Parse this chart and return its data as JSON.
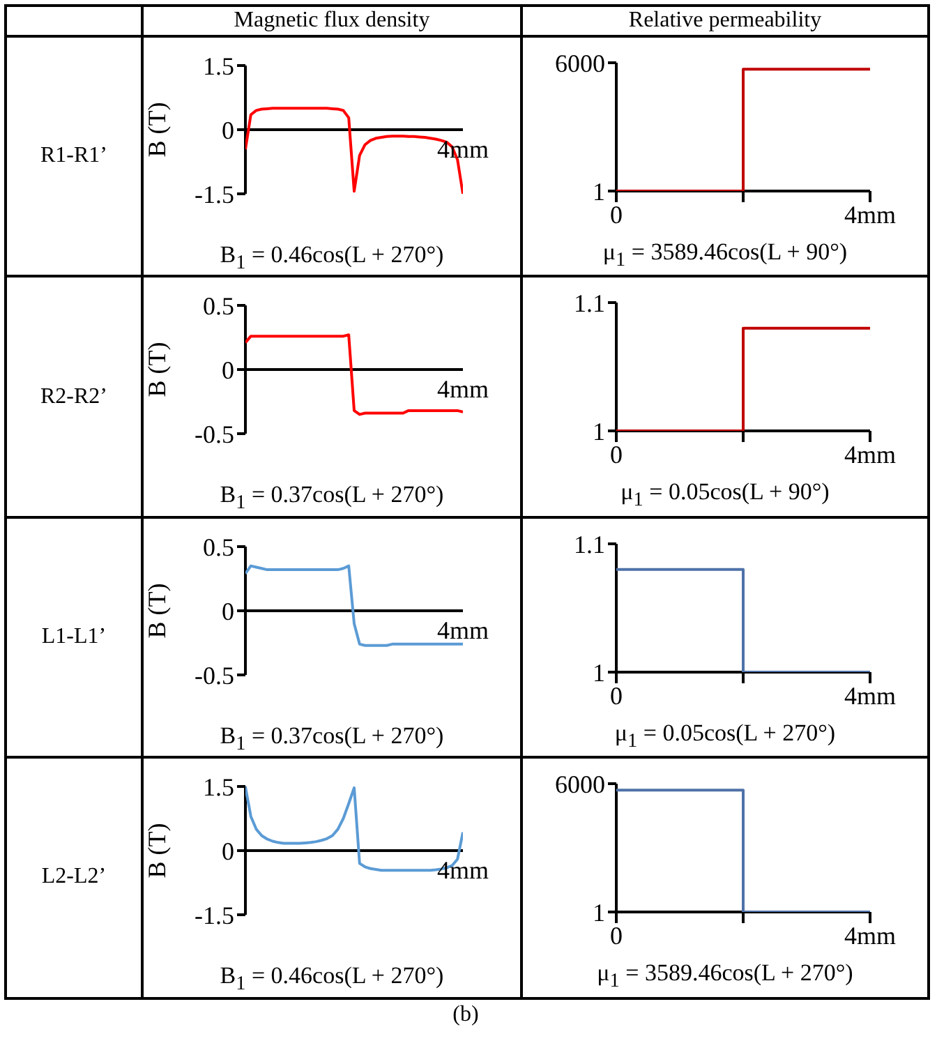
{
  "chart_data": [
    {
      "type": "line",
      "title": "Magnetic flux density",
      "annotations": [
        "R1-R1’",
        "4mm"
      ],
      "ylabel": "B (T)",
      "xlabel": "B$_{1}$ = 0.46cos(L + 270°)",
      "categories": [
        null,
        null,
        null,
        null,
        null,
        null,
        null,
        null,
        null,
        null,
        null,
        null,
        null,
        null,
        null,
        null,
        null,
        null,
        null,
        null,
        null,
        null,
        null,
        null,
        null,
        null,
        null,
        null,
        null,
        null,
        null,
        null,
        null,
        null,
        null,
        null,
        null,
        null,
        null,
        null,
        null
      ],
      "ylim": [
        -1.5,
        1.5
      ],
      "yticks": [
        -1.5,
        0,
        1.5
      ],
      "marker": "none",
      "line_style": "solid",
      "series": [
        {
          "color": "#ff0000",
          "values": [
            -0.46,
            0.35,
            0.45,
            0.48,
            0.49,
            0.5,
            0.5,
            0.5,
            0.5,
            0.5,
            0.5,
            0.5,
            0.5,
            0.5,
            0.5,
            0.5,
            0.49,
            0.48,
            0.45,
            0.28,
            -1.44,
            -0.6,
            -0.35,
            -0.25,
            -0.2,
            -0.18,
            -0.16,
            -0.15,
            -0.15,
            -0.15,
            -0.16,
            -0.16,
            -0.17,
            -0.18,
            -0.2,
            -0.22,
            -0.25,
            -0.29,
            -0.4,
            -0.7,
            -1.5
          ]
        }
      ]
    },
    {
      "type": "step",
      "title": "Relative permeability",
      "xlabel": "μ$_{1}$ = 3589.46cos(L + 90°)",
      "xlim": [
        0,
        4
      ],
      "xticks": [
        {
          "value": 0,
          "label": "0"
        },
        {
          "value": 2,
          "label": null
        },
        {
          "value": 4,
          "label": "4mm"
        }
      ],
      "ylim": [
        1,
        6000
      ],
      "yticks": [
        1,
        6000
      ],
      "marker": "none",
      "line_style": "solid",
      "series": [
        {
          "color": "#c00000",
          "x": [
            0,
            2,
            4
          ],
          "values": [
            1,
            5700,
            5700
          ]
        }
      ]
    },
    {
      "type": "line",
      "annotations": [
        "R2-R2’",
        "4mm"
      ],
      "ylabel": "B (T)",
      "xlabel": "B$_{1}$ = 0.37cos(L + 270°)",
      "categories": [
        null,
        null,
        null,
        null,
        null,
        null,
        null,
        null,
        null,
        null,
        null,
        null,
        null,
        null,
        null,
        null,
        null,
        null,
        null,
        null,
        null,
        null,
        null,
        null,
        null,
        null,
        null,
        null,
        null,
        null,
        null,
        null,
        null,
        null,
        null,
        null,
        null,
        null,
        null,
        null,
        null
      ],
      "ylim": [
        -0.5,
        0.5
      ],
      "yticks": [
        -0.5,
        0,
        0.5
      ],
      "marker": "none",
      "line_style": "solid",
      "series": [
        {
          "color": "#ff0000",
          "values": [
            0.21,
            0.26,
            0.26,
            0.26,
            0.26,
            0.26,
            0.26,
            0.26,
            0.26,
            0.26,
            0.26,
            0.26,
            0.26,
            0.26,
            0.26,
            0.26,
            0.26,
            0.26,
            0.26,
            0.27,
            -0.32,
            -0.35,
            -0.34,
            -0.34,
            -0.34,
            -0.34,
            -0.34,
            -0.34,
            -0.34,
            -0.34,
            -0.32,
            -0.32,
            -0.32,
            -0.32,
            -0.32,
            -0.32,
            -0.32,
            -0.32,
            -0.32,
            -0.32,
            -0.33
          ]
        }
      ]
    },
    {
      "type": "step",
      "xlabel": "μ$_{1}$ = 0.05cos(L + 90°)",
      "xlim": [
        0,
        4
      ],
      "xticks": [
        {
          "value": 0,
          "label": "0"
        },
        {
          "value": 2,
          "label": null
        },
        {
          "value": 4,
          "label": "4mm"
        }
      ],
      "ylim": [
        1,
        1.1
      ],
      "yticks": [
        1,
        1.1
      ],
      "marker": "none",
      "line_style": "solid",
      "series": [
        {
          "color": "#c00000",
          "x": [
            0,
            2,
            4
          ],
          "values": [
            1,
            1.08,
            1.08
          ]
        }
      ]
    },
    {
      "type": "line",
      "annotations": [
        "L1-L1’",
        "4mm"
      ],
      "ylabel": "B (T)",
      "xlabel": "B$_{1}$ = 0.37cos(L + 270°)",
      "categories": [
        null,
        null,
        null,
        null,
        null,
        null,
        null,
        null,
        null,
        null,
        null,
        null,
        null,
        null,
        null,
        null,
        null,
        null,
        null,
        null,
        null,
        null,
        null,
        null,
        null,
        null,
        null,
        null,
        null,
        null,
        null,
        null,
        null,
        null,
        null,
        null,
        null,
        null,
        null,
        null,
        null
      ],
      "ylim": [
        -0.5,
        0.5
      ],
      "yticks": [
        -0.5,
        0,
        0.5
      ],
      "marker": "none",
      "line_style": "solid",
      "series": [
        {
          "color": "#5b9bd5",
          "values": [
            0.29,
            0.35,
            0.34,
            0.33,
            0.32,
            0.32,
            0.32,
            0.32,
            0.32,
            0.32,
            0.32,
            0.32,
            0.32,
            0.32,
            0.32,
            0.32,
            0.32,
            0.32,
            0.33,
            0.35,
            -0.1,
            -0.26,
            -0.27,
            -0.27,
            -0.27,
            -0.27,
            -0.27,
            -0.26,
            -0.26,
            -0.26,
            -0.26,
            -0.26,
            -0.26,
            -0.26,
            -0.26,
            -0.26,
            -0.26,
            -0.26,
            -0.26,
            -0.26,
            -0.26
          ]
        }
      ]
    },
    {
      "type": "step",
      "xlabel": "μ$_{1}$ = 0.05cos(L + 270°)",
      "xlim": [
        0,
        4
      ],
      "xticks": [
        {
          "value": 0,
          "label": "0"
        },
        {
          "value": 2,
          "label": null
        },
        {
          "value": 4,
          "label": "4mm"
        }
      ],
      "ylim": [
        1,
        1.1
      ],
      "yticks": [
        1,
        1.1
      ],
      "marker": "none",
      "line_style": "solid",
      "series": [
        {
          "color": "#4f72a8",
          "x": [
            0,
            2,
            4
          ],
          "values": [
            1.08,
            1,
            1
          ]
        }
      ]
    },
    {
      "type": "line",
      "annotations": [
        "L2-L2’",
        "4mm"
      ],
      "ylabel": "B (T)",
      "xlabel": "B$_{1}$ = 0.46cos(L + 270°)",
      "categories": [
        null,
        null,
        null,
        null,
        null,
        null,
        null,
        null,
        null,
        null,
        null,
        null,
        null,
        null,
        null,
        null,
        null,
        null,
        null,
        null,
        null,
        null,
        null,
        null,
        null,
        null,
        null,
        null,
        null,
        null,
        null,
        null,
        null,
        null,
        null,
        null,
        null,
        null,
        null,
        null,
        null
      ],
      "ylim": [
        -1.5,
        1.5
      ],
      "yticks": [
        -1.5,
        0,
        1.5
      ],
      "marker": "none",
      "line_style": "solid",
      "series": [
        {
          "color": "#5b9bd5",
          "values": [
            1.49,
            0.8,
            0.5,
            0.35,
            0.27,
            0.22,
            0.19,
            0.17,
            0.17,
            0.17,
            0.17,
            0.18,
            0.19,
            0.21,
            0.24,
            0.28,
            0.35,
            0.5,
            0.75,
            1.1,
            1.47,
            -0.3,
            -0.38,
            -0.42,
            -0.44,
            -0.46,
            -0.46,
            -0.46,
            -0.46,
            -0.46,
            -0.46,
            -0.46,
            -0.46,
            -0.46,
            -0.46,
            -0.45,
            -0.43,
            -0.4,
            -0.35,
            -0.2,
            0.43
          ]
        }
      ]
    },
    {
      "type": "step",
      "annotations": [
        "(b)"
      ],
      "xlabel": "μ$_{1}$ = 3589.46cos(L + 270°)",
      "xlim": [
        0,
        4
      ],
      "xticks": [
        {
          "value": 0,
          "label": "0"
        },
        {
          "value": 2,
          "label": null
        },
        {
          "value": 4,
          "label": "4mm"
        }
      ],
      "ylim": [
        1,
        6000
      ],
      "yticks": [
        1,
        6000
      ],
      "marker": "none",
      "line_style": "solid",
      "series": [
        {
          "color": "#4f72a8",
          "x": [
            0,
            2,
            4
          ],
          "values": [
            5700,
            1,
            1
          ]
        }
      ]
    }
  ]
}
